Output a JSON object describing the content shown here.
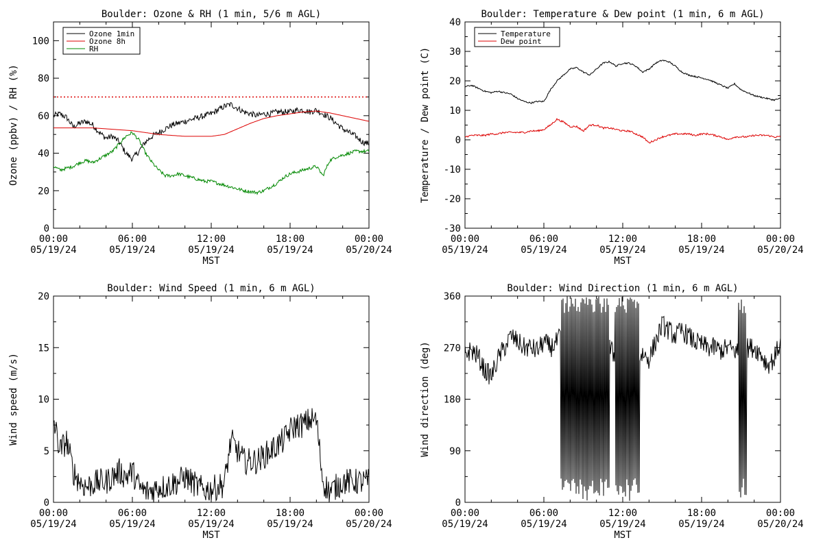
{
  "chart_data": [
    {
      "type": "line",
      "title": "Boulder: Ozone & RH (1 min, 5/6 m AGL)",
      "xlabel": "MST",
      "ylabel": "Ozone (ppbv) / RH (%)",
      "xlim": [
        0,
        24
      ],
      "ylim": [
        0,
        110
      ],
      "x_ticks": [
        [
          "00:00",
          "05/19/24"
        ],
        [
          "06:00",
          "05/19/24"
        ],
        [
          "12:00",
          "05/19/24"
        ],
        [
          "18:00",
          "05/19/24"
        ],
        [
          "00:00",
          "05/20/24"
        ]
      ],
      "y_ticks": [
        0,
        20,
        40,
        60,
        80,
        100
      ],
      "legend_position": "top-left",
      "reference_line": {
        "y": 70,
        "color": "#dd0000",
        "style": "dotted"
      },
      "series": [
        {
          "name": "Ozone 1min",
          "color": "#000000",
          "noise": 1.6,
          "x": [
            0,
            0.5,
            1,
            1.5,
            2,
            2.5,
            3,
            3.5,
            4,
            4.5,
            5,
            5.5,
            6,
            6.5,
            7,
            7.5,
            8,
            8.5,
            9,
            9.5,
            10,
            10.5,
            11,
            11.5,
            12,
            12.5,
            13,
            13.5,
            14,
            14.5,
            15,
            15.5,
            16,
            16.5,
            17,
            17.5,
            18,
            18.5,
            19,
            19.5,
            20,
            20.5,
            21,
            21.5,
            22,
            22.5,
            23,
            23.5,
            24
          ],
          "y": [
            60,
            61,
            59,
            54,
            56,
            57,
            55,
            51,
            48,
            49,
            46,
            40,
            37,
            41,
            46,
            49,
            51,
            53,
            55,
            56,
            57,
            58,
            59,
            60,
            61,
            63,
            65,
            66,
            64,
            62,
            61,
            60,
            61,
            61,
            62,
            62,
            62,
            63,
            63,
            62,
            63,
            61,
            59,
            56,
            53,
            51,
            49,
            46,
            45
          ]
        },
        {
          "name": "Ozone 8h",
          "color": "#dd0000",
          "noise": 0,
          "x": [
            0,
            1,
            2,
            3,
            4,
            5,
            6,
            7,
            8,
            9,
            10,
            11,
            12,
            13,
            14,
            15,
            16,
            17,
            18,
            19,
            20,
            21,
            22,
            23,
            24
          ],
          "y": [
            53.5,
            53.5,
            53.5,
            53.5,
            53,
            52.5,
            52,
            51,
            50,
            49.5,
            49,
            49,
            49,
            50,
            53,
            56,
            58.5,
            60,
            61,
            62,
            62.5,
            61.5,
            60,
            58.5,
            57
          ]
        },
        {
          "name": "RH",
          "color": "#008800",
          "noise": 0.9,
          "x": [
            0,
            0.5,
            1,
            1.5,
            2,
            2.5,
            3,
            3.5,
            4,
            4.5,
            5,
            5.5,
            6,
            6.5,
            7,
            7.5,
            8,
            8.5,
            9,
            9.5,
            10,
            10.5,
            11,
            11.5,
            12,
            12.5,
            13,
            13.5,
            14,
            14.5,
            15,
            15.5,
            16,
            16.5,
            17,
            17.5,
            18,
            18.5,
            19,
            19.5,
            20,
            20.5,
            21,
            21.5,
            22,
            22.5,
            23,
            23.5,
            24
          ],
          "y": [
            33,
            31,
            32,
            33,
            35,
            36,
            35,
            37,
            39,
            41,
            45,
            49,
            51,
            47,
            40,
            35,
            31,
            28,
            28,
            29,
            28,
            27,
            26,
            25,
            25,
            24,
            23,
            22,
            21,
            20,
            19.5,
            19,
            20,
            22,
            24,
            27,
            29,
            30,
            31,
            32,
            33,
            28,
            36,
            38,
            39,
            40,
            41,
            41,
            41
          ]
        }
      ]
    },
    {
      "type": "line",
      "title": "Boulder: Temperature & Dew point (1 min, 6 m AGL)",
      "xlabel": "MST",
      "ylabel": "Temperature / Dew point (C)",
      "xlim": [
        0,
        24
      ],
      "ylim": [
        -30,
        40
      ],
      "x_ticks": [
        [
          "00:00",
          "05/19/24"
        ],
        [
          "06:00",
          "05/19/24"
        ],
        [
          "12:00",
          "05/19/24"
        ],
        [
          "18:00",
          "05/19/24"
        ],
        [
          "00:00",
          "05/20/24"
        ]
      ],
      "y_ticks": [
        -30,
        -20,
        -10,
        0,
        10,
        20,
        30,
        40
      ],
      "legend_position": "top-left",
      "series": [
        {
          "name": "Temperature",
          "color": "#000000",
          "noise": 0.25,
          "x": [
            0,
            0.5,
            1,
            1.5,
            2,
            2.5,
            3,
            3.5,
            4,
            4.5,
            5,
            5.5,
            6,
            6.5,
            7,
            7.5,
            8,
            8.5,
            9,
            9.5,
            10,
            10.5,
            11,
            11.5,
            12,
            12.5,
            13,
            13.5,
            14,
            14.5,
            15,
            15.5,
            16,
            16.5,
            17,
            17.5,
            18,
            18.5,
            19,
            19.5,
            20,
            20.5,
            21,
            21.5,
            22,
            22.5,
            23,
            23.5,
            24
          ],
          "y": [
            18,
            18.5,
            17.5,
            16.5,
            16,
            16.5,
            16,
            15.5,
            14,
            13,
            12.5,
            13,
            13,
            17,
            20,
            22,
            24,
            24.5,
            23,
            22,
            24,
            26,
            26.5,
            25,
            26,
            26,
            25,
            23,
            24,
            26,
            27,
            26.5,
            25,
            23,
            22,
            21.5,
            21,
            20.5,
            19.5,
            18.5,
            17.5,
            19,
            17,
            16,
            15,
            14.5,
            14,
            13.5,
            14
          ]
        },
        {
          "name": "Dew point",
          "color": "#dd0000",
          "noise": 0.3,
          "x": [
            0,
            0.5,
            1,
            1.5,
            2,
            2.5,
            3,
            3.5,
            4,
            4.5,
            5,
            5.5,
            6,
            6.5,
            7,
            7.5,
            8,
            8.5,
            9,
            9.5,
            10,
            10.5,
            11,
            11.5,
            12,
            12.5,
            13,
            13.5,
            14,
            14.5,
            15,
            15.5,
            16,
            16.5,
            17,
            17.5,
            18,
            18.5,
            19,
            19.5,
            20,
            20.5,
            21,
            21.5,
            22,
            22.5,
            23,
            23.5,
            24
          ],
          "y": [
            1,
            1.5,
            1.5,
            1.5,
            2,
            2,
            2.5,
            2.5,
            2.5,
            2.5,
            3,
            3,
            3.5,
            5,
            7,
            6,
            4.5,
            4.5,
            3,
            5,
            5,
            4,
            4,
            3.5,
            3,
            3,
            2,
            1,
            -1,
            0,
            1,
            1.5,
            2,
            2,
            2,
            1.5,
            2,
            2,
            1.5,
            1,
            0,
            1,
            1,
            1,
            1.5,
            1.5,
            1.5,
            1,
            1
          ]
        }
      ]
    },
    {
      "type": "line",
      "title": "Boulder: Wind Speed (1 min, 6 m AGL)",
      "xlabel": "MST",
      "ylabel": "Wind speed (m/s)",
      "xlim": [
        0,
        24
      ],
      "ylim": [
        0,
        20
      ],
      "x_ticks": [
        [
          "00:00",
          "05/19/24"
        ],
        [
          "06:00",
          "05/19/24"
        ],
        [
          "12:00",
          "05/19/24"
        ],
        [
          "18:00",
          "05/19/24"
        ],
        [
          "00:00",
          "05/20/24"
        ]
      ],
      "y_ticks": [
        0,
        5,
        10,
        15,
        20
      ],
      "series": [
        {
          "name": "",
          "color": "#000000",
          "noise": 1.3,
          "x": [
            0,
            0.5,
            1,
            1.5,
            2,
            2.5,
            3,
            3.5,
            4,
            4.5,
            5,
            5.5,
            6,
            6.5,
            7,
            7.5,
            8,
            8.5,
            9,
            9.5,
            10,
            10.5,
            11,
            11.5,
            12,
            12.5,
            13,
            13.5,
            14,
            14.5,
            15,
            15.5,
            16,
            16.5,
            17,
            17.5,
            18,
            18.5,
            19,
            19.5,
            20,
            20.5,
            21,
            21.5,
            22,
            22.5,
            23,
            23.5,
            24
          ],
          "y": [
            8,
            5,
            6,
            3,
            2,
            1.5,
            1.8,
            2,
            2,
            2.5,
            3,
            2.5,
            3,
            1.5,
            1,
            1.2,
            1.5,
            1.5,
            1.8,
            2,
            2.5,
            2,
            1.5,
            1.2,
            1.3,
            1.5,
            1.8,
            6,
            5,
            4,
            4,
            4,
            4.5,
            5,
            5.5,
            6,
            7,
            7.5,
            7.5,
            8,
            8,
            2,
            1,
            1.5,
            2,
            2,
            2,
            2,
            2
          ]
        }
      ]
    },
    {
      "type": "line",
      "title": "Boulder: Wind Direction (1 min, 6 m AGL)",
      "xlabel": "MST",
      "ylabel": "Wind direction (deg)",
      "xlim": [
        0,
        24
      ],
      "ylim": [
        0,
        360
      ],
      "x_ticks": [
        [
          "00:00",
          "05/19/24"
        ],
        [
          "06:00",
          "05/19/24"
        ],
        [
          "12:00",
          "05/19/24"
        ],
        [
          "18:00",
          "05/19/24"
        ],
        [
          "00:00",
          "05/20/24"
        ]
      ],
      "y_ticks": [
        0,
        90,
        180,
        270,
        360
      ],
      "wrap_segments": [
        [
          7.3,
          11.0
        ],
        [
          11.4,
          13.3
        ],
        [
          20.8,
          21.4
        ]
      ],
      "series": [
        {
          "name": "",
          "color": "#000000",
          "noise": 18,
          "x": [
            0,
            0.5,
            1,
            1.5,
            2,
            2.5,
            3,
            3.5,
            4,
            4.5,
            5,
            5.5,
            6,
            6.5,
            7,
            7.5,
            8,
            8.5,
            9,
            9.5,
            10,
            10.5,
            11,
            11.5,
            12,
            12.5,
            13,
            13.5,
            14,
            14.5,
            15,
            15.5,
            16,
            16.5,
            17,
            17.5,
            18,
            18.5,
            19,
            19.5,
            20,
            20.5,
            21,
            21.5,
            22,
            22.5,
            23,
            23.5,
            24
          ],
          "y": [
            260,
            265,
            255,
            230,
            220,
            250,
            270,
            290,
            280,
            270,
            270,
            265,
            280,
            270,
            280,
            300,
            200,
            200,
            220,
            250,
            200,
            250,
            270,
            250,
            260,
            250,
            240,
            260,
            250,
            280,
            310,
            300,
            290,
            300,
            290,
            280,
            275,
            270,
            270,
            265,
            270,
            265,
            260,
            270,
            270,
            260,
            240,
            250,
            280
          ]
        }
      ]
    }
  ]
}
